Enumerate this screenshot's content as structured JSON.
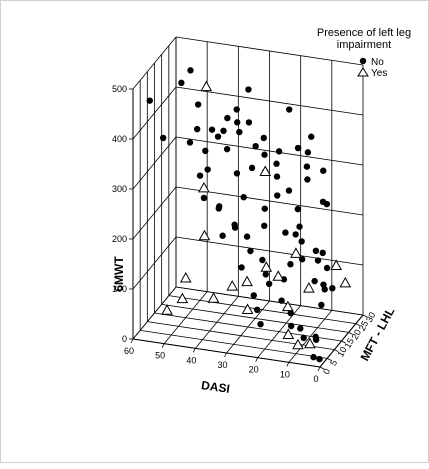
{
  "legend": {
    "title_line1": "Presence of left leg",
    "title_line2": "impairment",
    "no_label": "No",
    "yes_label": "Yes"
  },
  "chart_data": {
    "type": "scatter",
    "subtype": "3d-scatter",
    "x_axis": {
      "label": "DASI",
      "range": [
        0,
        60
      ],
      "ticks": [
        0,
        10,
        20,
        30,
        40,
        50,
        60
      ]
    },
    "z_axis": {
      "label": "MFT - LHL",
      "range": [
        0,
        30
      ],
      "ticks": [
        0,
        5,
        10,
        15,
        20,
        25,
        30
      ]
    },
    "y_axis": {
      "label": "6MWT",
      "range": [
        0,
        500
      ],
      "ticks": [
        0,
        100,
        200,
        300,
        400,
        500
      ]
    },
    "grid": true,
    "legend_position": "top-right",
    "series": [
      {
        "name": "No",
        "marker": "filled-circle",
        "color": "#000000",
        "points": [
          [
            56,
            3,
            470
          ],
          [
            54,
            8,
            380
          ],
          [
            50,
            12,
            480
          ],
          [
            48,
            14,
            500
          ],
          [
            46,
            15,
            430
          ],
          [
            44,
            10,
            400
          ],
          [
            42,
            16,
            380
          ],
          [
            41,
            18,
            360
          ],
          [
            39,
            20,
            330
          ],
          [
            38,
            18,
            400
          ],
          [
            36,
            22,
            360
          ],
          [
            35,
            18,
            420
          ],
          [
            34,
            24,
            440
          ],
          [
            33,
            14,
            410
          ],
          [
            32,
            20,
            390
          ],
          [
            31,
            20,
            300
          ],
          [
            30,
            26,
            340
          ],
          [
            28,
            16,
            360
          ],
          [
            27,
            20,
            330
          ],
          [
            26,
            28,
            310
          ],
          [
            25,
            24,
            300
          ],
          [
            24,
            14,
            320
          ],
          [
            23,
            20,
            290
          ],
          [
            22,
            18,
            260
          ],
          [
            21,
            24,
            250
          ],
          [
            20,
            22,
            420
          ],
          [
            19,
            26,
            330
          ],
          [
            18,
            15,
            200
          ],
          [
            17,
            20,
            180
          ],
          [
            16,
            22,
            160
          ],
          [
            15,
            12,
            150
          ],
          [
            14,
            18,
            140
          ],
          [
            13,
            14,
            220
          ],
          [
            12,
            28,
            120
          ],
          [
            12,
            20,
            380
          ],
          [
            11,
            26,
            230
          ],
          [
            10,
            18,
            100
          ],
          [
            9,
            22,
            80
          ],
          [
            8,
            26,
            60
          ],
          [
            7,
            20,
            250
          ],
          [
            6,
            14,
            70
          ],
          [
            5,
            8,
            200
          ],
          [
            30,
            6,
            230
          ],
          [
            28,
            10,
            200
          ],
          [
            26,
            8,
            180
          ],
          [
            24,
            12,
            150
          ],
          [
            22,
            10,
            130
          ],
          [
            20,
            8,
            120
          ],
          [
            18,
            14,
            110
          ],
          [
            16,
            8,
            90
          ],
          [
            14,
            10,
            60
          ],
          [
            12,
            6,
            50
          ],
          [
            10,
            8,
            40
          ],
          [
            8,
            6,
            30
          ],
          [
            6,
            10,
            20
          ],
          [
            4,
            6,
            30
          ],
          [
            3,
            2,
            10
          ],
          [
            2,
            4,
            0
          ],
          [
            36,
            8,
            260
          ],
          [
            40,
            6,
            280
          ],
          [
            44,
            12,
            300
          ],
          [
            34,
            6,
            210
          ],
          [
            38,
            12,
            240
          ],
          [
            32,
            10,
            220
          ],
          [
            27,
            4,
            160
          ],
          [
            24,
            6,
            100
          ],
          [
            22,
            4,
            80
          ],
          [
            20,
            2,
            60
          ],
          [
            28,
            22,
            180
          ],
          [
            30,
            12,
            270
          ],
          [
            34,
            16,
            300
          ],
          [
            26,
            18,
            230
          ],
          [
            42,
            24,
            350
          ],
          [
            46,
            20,
            320
          ],
          [
            50,
            18,
            340
          ],
          [
            48,
            26,
            260
          ],
          [
            20,
            28,
            200
          ],
          [
            16,
            26,
            270
          ],
          [
            18,
            30,
            280
          ],
          [
            10,
            24,
            300
          ],
          [
            14,
            22,
            340
          ],
          [
            8,
            16,
            150
          ],
          [
            6,
            18,
            130
          ],
          [
            4,
            12,
            110
          ]
        ]
      },
      {
        "name": "Yes",
        "marker": "open-triangle",
        "color": "#000000",
        "points": [
          [
            42,
            12,
            480
          ],
          [
            40,
            6,
            300
          ],
          [
            38,
            2,
            220
          ],
          [
            44,
            2,
            130
          ],
          [
            50,
            2,
            60
          ],
          [
            46,
            4,
            80
          ],
          [
            36,
            4,
            90
          ],
          [
            30,
            4,
            120
          ],
          [
            28,
            10,
            110
          ],
          [
            26,
            6,
            70
          ],
          [
            20,
            6,
            160
          ],
          [
            24,
            14,
            320
          ],
          [
            18,
            10,
            130
          ],
          [
            14,
            8,
            80
          ],
          [
            12,
            4,
            40
          ],
          [
            8,
            2,
            30
          ],
          [
            6,
            6,
            20
          ],
          [
            10,
            14,
            100
          ],
          [
            16,
            18,
            150
          ],
          [
            4,
            20,
            130
          ],
          [
            2,
            22,
            90
          ]
        ]
      }
    ]
  }
}
